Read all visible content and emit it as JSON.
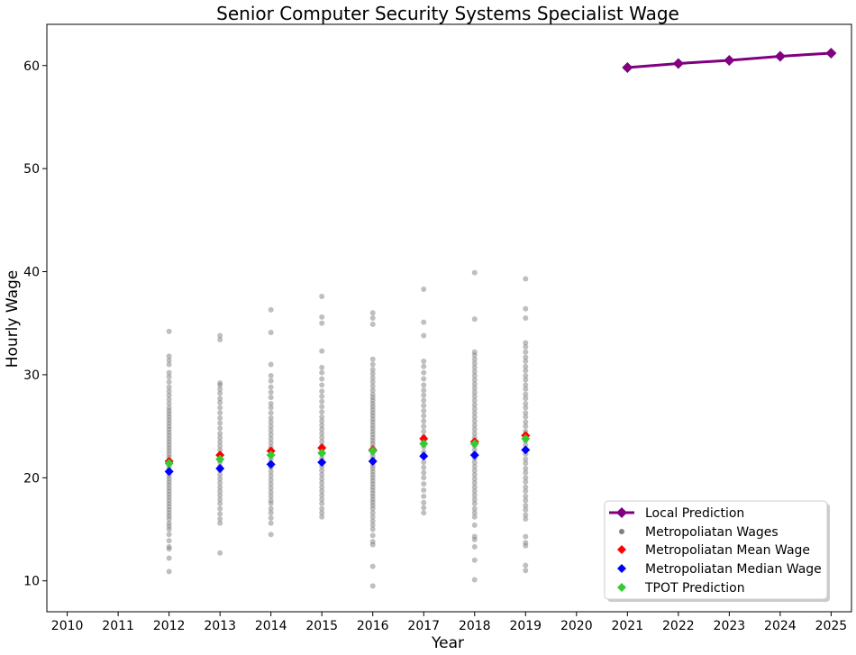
{
  "chart_data": {
    "type": "scatter",
    "title": "Senior Computer Security Systems Specialist Wage",
    "xlabel": "Year",
    "ylabel": "Hourly Wage",
    "xlim": [
      2009.6,
      2025.4
    ],
    "ylim": [
      7,
      64
    ],
    "x_ticks": [
      2010,
      2011,
      2012,
      2013,
      2014,
      2015,
      2016,
      2017,
      2018,
      2019,
      2020,
      2021,
      2022,
      2023,
      2024,
      2025
    ],
    "y_ticks": [
      10,
      20,
      30,
      40,
      50,
      60
    ],
    "grid": false,
    "legend_position": "lower-right",
    "colors": {
      "local": "#800080",
      "metro_points": "#808080",
      "mean": "#ff0000",
      "median": "#0000ff",
      "tpot": "#33cc33"
    },
    "series": [
      {
        "name": "Local Prediction",
        "kind": "line",
        "x": [
          2021,
          2022,
          2023,
          2024,
          2025
        ],
        "y": [
          59.8,
          60.2,
          60.5,
          60.9,
          61.2
        ]
      },
      {
        "name": "Metropoliatan Wages",
        "kind": "points",
        "groups": [
          {
            "x": 2012,
            "y": [
              10.9,
              12.2,
              13.1,
              13.3,
              13.9,
              14.5,
              15.0,
              15.3,
              15.6,
              16.0,
              16.3,
              16.6,
              16.9,
              17.2,
              17.5,
              17.8,
              18.1,
              18.4,
              18.7,
              19.0,
              19.3,
              19.6,
              19.9,
              20.2,
              20.5,
              20.8,
              21.1,
              21.4,
              21.7,
              22.0,
              22.3,
              22.6,
              22.9,
              23.2,
              23.5,
              23.8,
              24.1,
              24.4,
              24.7,
              25.0,
              25.3,
              25.6,
              25.9,
              26.2,
              26.5,
              26.8,
              27.2,
              27.6,
              28.0,
              28.4,
              28.8,
              29.3,
              29.8,
              30.2,
              31.0,
              31.4,
              31.8,
              34.2
            ]
          },
          {
            "x": 2013,
            "y": [
              12.7,
              15.6,
              16.0,
              16.5,
              17.0,
              17.5,
              17.9,
              18.3,
              18.7,
              19.1,
              19.5,
              19.9,
              20.3,
              20.7,
              21.1,
              21.5,
              21.9,
              22.3,
              22.7,
              23.1,
              23.5,
              23.9,
              24.3,
              24.8,
              25.3,
              25.8,
              26.3,
              26.8,
              27.3,
              27.7,
              28.2,
              28.6,
              29.0,
              29.2,
              33.4,
              33.8
            ]
          },
          {
            "x": 2014,
            "y": [
              14.5,
              15.6,
              16.1,
              16.6,
              17.0,
              17.5,
              17.8,
              18.2,
              18.6,
              19.0,
              19.4,
              19.8,
              20.2,
              20.6,
              21.0,
              21.4,
              21.8,
              22.2,
              22.6,
              23.0,
              23.4,
              23.8,
              24.2,
              24.6,
              25.0,
              25.4,
              25.8,
              26.3,
              26.8,
              27.2,
              27.8,
              28.3,
              28.8,
              29.4,
              29.9,
              31.0,
              34.1,
              36.3
            ]
          },
          {
            "x": 2015,
            "y": [
              16.2,
              16.6,
              17.0,
              17.5,
              17.9,
              18.3,
              18.7,
              19.1,
              19.5,
              19.9,
              20.3,
              20.7,
              21.1,
              21.5,
              21.9,
              22.3,
              22.7,
              23.1,
              23.5,
              23.9,
              24.3,
              24.7,
              25.1,
              25.5,
              25.9,
              26.4,
              26.9,
              27.4,
              27.9,
              28.4,
              29.0,
              29.6,
              30.2,
              30.7,
              32.3,
              35.0,
              35.6,
              37.6
            ]
          },
          {
            "x": 2016,
            "y": [
              9.5,
              11.4,
              13.5,
              13.8,
              14.4,
              15.0,
              15.4,
              15.8,
              16.2,
              16.6,
              17.0,
              17.3,
              17.6,
              17.9,
              18.2,
              18.5,
              18.8,
              19.1,
              19.4,
              19.7,
              20.0,
              20.3,
              20.6,
              20.9,
              21.2,
              21.5,
              21.8,
              22.1,
              22.4,
              22.7,
              23.0,
              23.3,
              23.6,
              23.9,
              24.2,
              24.5,
              24.8,
              25.1,
              25.4,
              25.7,
              26.0,
              26.3,
              26.6,
              26.9,
              27.2,
              27.5,
              27.8,
              28.1,
              28.5,
              28.9,
              29.3,
              29.7,
              30.1,
              30.5,
              31.0,
              31.5,
              34.9,
              35.5,
              36.0
            ]
          },
          {
            "x": 2017,
            "y": [
              16.6,
              17.1,
              17.6,
              18.2,
              18.8,
              19.4,
              20.0,
              20.5,
              21.0,
              21.5,
              22.0,
              22.5,
              23.0,
              23.5,
              24.0,
              24.5,
              25.0,
              25.5,
              26.0,
              26.5,
              27.0,
              27.5,
              28.0,
              28.5,
              29.0,
              29.6,
              30.2,
              30.8,
              31.3,
              33.8,
              35.1,
              38.3
            ]
          },
          {
            "x": 2018,
            "y": [
              10.1,
              12.0,
              13.3,
              14.0,
              14.3,
              15.4,
              16.2,
              16.6,
              17.0,
              17.5,
              17.9,
              18.3,
              18.7,
              19.1,
              19.5,
              19.9,
              20.3,
              20.7,
              21.1,
              21.5,
              21.9,
              22.3,
              22.7,
              23.1,
              23.5,
              23.9,
              24.3,
              24.7,
              25.1,
              25.5,
              25.9,
              26.3,
              26.7,
              27.1,
              27.5,
              27.9,
              28.3,
              28.7,
              29.1,
              29.5,
              29.9,
              30.3,
              30.7,
              31.1,
              31.5,
              31.9,
              32.2,
              35.4,
              39.9
            ]
          },
          {
            "x": 2019,
            "y": [
              11.0,
              11.5,
              13.4,
              13.7,
              14.3,
              16.0,
              16.4,
              16.9,
              17.3,
              17.8,
              18.2,
              18.7,
              19.1,
              19.6,
              20.0,
              20.5,
              20.9,
              21.4,
              21.8,
              22.3,
              22.7,
              23.2,
              23.6,
              24.1,
              24.5,
              25.0,
              25.4,
              25.9,
              26.3,
              26.8,
              27.2,
              27.7,
              28.1,
              28.6,
              29.0,
              29.5,
              29.9,
              30.4,
              30.8,
              31.3,
              31.7,
              32.2,
              32.7,
              33.1,
              35.5,
              36.4,
              39.3
            ]
          }
        ]
      },
      {
        "name": "Metropoliatan Mean Wage",
        "kind": "markers",
        "x": [
          2012,
          2013,
          2014,
          2015,
          2016,
          2017,
          2018,
          2019
        ],
        "y": [
          21.6,
          22.2,
          22.6,
          22.9,
          22.7,
          23.8,
          23.5,
          24.1
        ]
      },
      {
        "name": "Metropoliatan Median Wage",
        "kind": "markers",
        "x": [
          2012,
          2013,
          2014,
          2015,
          2016,
          2017,
          2018,
          2019
        ],
        "y": [
          20.6,
          20.9,
          21.3,
          21.5,
          21.6,
          22.1,
          22.2,
          22.7
        ]
      },
      {
        "name": "TPOT Prediction",
        "kind": "markers",
        "x": [
          2012,
          2013,
          2014,
          2015,
          2016,
          2017,
          2018,
          2019
        ],
        "y": [
          21.4,
          21.8,
          22.2,
          22.4,
          22.6,
          23.3,
          23.3,
          23.8
        ]
      }
    ],
    "legend": [
      "Local Prediction",
      "Metropoliatan Wages",
      "Metropoliatan Mean Wage",
      "Metropoliatan Median Wage",
      "TPOT Prediction"
    ]
  }
}
